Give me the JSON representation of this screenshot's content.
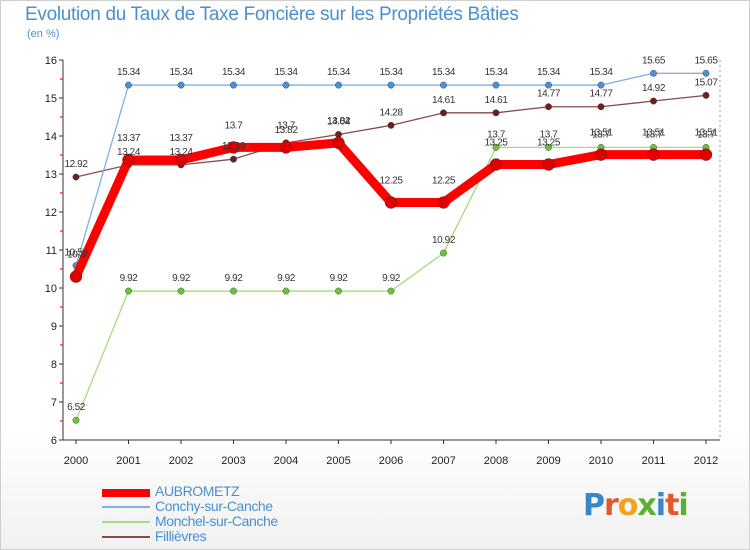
{
  "title": "Evolution du Taux de Taxe Foncière sur les Propriétés Bâties",
  "unit": "(en %)",
  "logo": "Proxiti",
  "chart_data": {
    "type": "line",
    "title": "Evolution du Taux de Taxe Foncière sur les Propriétés Bâties",
    "ylabel": "(en %)",
    "ylim": [
      6,
      16
    ],
    "yticks": [
      "6",
      "7",
      "8",
      "9",
      "10",
      "11",
      "12",
      "13",
      "14",
      "15",
      "16"
    ],
    "categories": [
      "2000",
      "2001",
      "2002",
      "2003",
      "2004",
      "2005",
      "2006",
      "2007",
      "2008",
      "2009",
      "2010",
      "2011",
      "2012"
    ],
    "series": [
      {
        "name": "AUBROMETZ",
        "color": "#ff0000",
        "marker": "#e00000",
        "values": [
          10.3,
          13.37,
          13.37,
          13.7,
          13.7,
          13.82,
          12.25,
          12.25,
          13.25,
          13.25,
          13.51,
          13.51,
          13.51
        ],
        "labels": [
          "10.3",
          "13.37",
          "13.37",
          "13.7",
          "13.7",
          "13.82",
          "12.25",
          "12.25",
          "13.25",
          "13.25",
          "13.51",
          "13.51",
          "13.51"
        ]
      },
      {
        "name": "Conchy-sur-Canche",
        "color": "#7fb2e0",
        "marker": "#4a90d9",
        "values": [
          10.59,
          15.34,
          15.34,
          15.34,
          15.34,
          15.34,
          15.34,
          15.34,
          15.34,
          15.34,
          15.34,
          15.65,
          15.65
        ],
        "labels": [
          "10.59",
          "15.34",
          "15.34",
          "15.34",
          "15.34",
          "15.34",
          "15.34",
          "15.34",
          "15.34",
          "15.34",
          "15.34",
          "15.65",
          "15.65"
        ]
      },
      {
        "name": "Monchel-sur-Canche",
        "color": "#a6dc7c",
        "marker": "#6cc33a",
        "values": [
          6.52,
          9.92,
          9.92,
          9.92,
          9.92,
          9.92,
          9.92,
          10.92,
          13.7,
          13.7,
          13.7,
          13.7,
          13.7
        ],
        "labels": [
          "6.52",
          "9.92",
          "9.92",
          "9.92",
          "9.92",
          "9.92",
          "9.92",
          "10.92",
          "13.7",
          "13.7",
          "13.7",
          "13.7",
          "13.7"
        ]
      },
      {
        "name": "Fillièvres",
        "color": "#8b4a4a",
        "marker": "#6b1f1f",
        "values": [
          12.92,
          13.24,
          13.24,
          13.39,
          13.82,
          14.04,
          14.28,
          14.61,
          14.61,
          14.77,
          14.77,
          14.92,
          15.07
        ],
        "labels": [
          "12.92",
          "13.24",
          "13.24",
          "13.39",
          "13.82",
          "14.04",
          "14.28",
          "14.61",
          "14.61",
          "14.77",
          "14.77",
          "14.92",
          "15.07"
        ]
      }
    ],
    "grid": false,
    "legend": "bottom-left"
  }
}
